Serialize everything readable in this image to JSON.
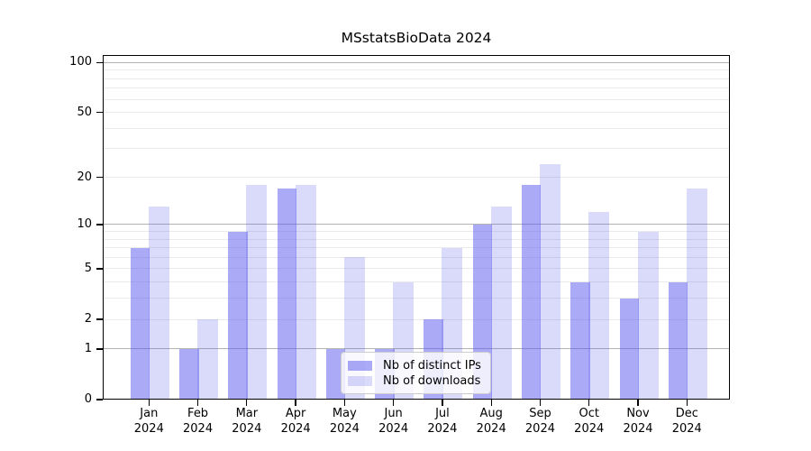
{
  "title": "MSstatsBioData 2024",
  "legend": {
    "items": [
      {
        "label": "Nb of distinct IPs"
      },
      {
        "label": "Nb of downloads"
      }
    ]
  },
  "axes": {
    "y_ticks": [
      {
        "label": "100",
        "value": 100
      },
      {
        "label": "50",
        "value": 50
      },
      {
        "label": "20",
        "value": 20
      },
      {
        "label": "10",
        "value": 10
      },
      {
        "label": "5",
        "value": 5
      },
      {
        "label": "2",
        "value": 2
      },
      {
        "label": "1",
        "value": 1
      },
      {
        "label": "0",
        "value": 0
      }
    ],
    "x_year_line": "2024"
  },
  "chart_data": {
    "type": "bar",
    "title": "MSstatsBioData 2024",
    "categories": [
      "Jan",
      "Feb",
      "Mar",
      "Apr",
      "May",
      "Jun",
      "Jul",
      "Aug",
      "Sep",
      "Oct",
      "Nov",
      "Dec"
    ],
    "category_year": "2024",
    "series": [
      {
        "name": "Nb of distinct IPs",
        "color": "rgba(85,85,238,0.5)",
        "values": [
          7,
          1,
          9,
          17,
          1,
          1,
          2,
          10,
          18,
          4,
          3,
          4
        ]
      },
      {
        "name": "Nb of downloads",
        "color": "rgba(85,85,238,0.22)",
        "values": [
          13,
          2,
          18,
          18,
          6,
          4,
          7,
          13,
          24,
          12,
          9,
          17
        ]
      }
    ],
    "yscale": "log1p",
    "ylim": [
      0,
      111
    ],
    "yticks": [
      0,
      1,
      2,
      5,
      10,
      20,
      50,
      100
    ],
    "grid": {
      "major_values": [
        1,
        10,
        100
      ],
      "minor_values": [
        2,
        3,
        4,
        5,
        6,
        7,
        8,
        9,
        20,
        30,
        40,
        50,
        60,
        70,
        80,
        90
      ]
    },
    "legend_position": "lower center inside",
    "xlabel": "",
    "ylabel": ""
  },
  "colors": {
    "bar_base": "#5555ee",
    "bar_ips_rendered": "#aaaaf7",
    "bar_downloads_rendered": "#d9d9fa",
    "grid_major": "#b3b3b3",
    "grid_minor": "#eaeaea",
    "axis_line": "#000000",
    "text": "#000000",
    "legend_bg": "rgba(255,255,255,0.8)",
    "legend_border": "#cccccc"
  }
}
